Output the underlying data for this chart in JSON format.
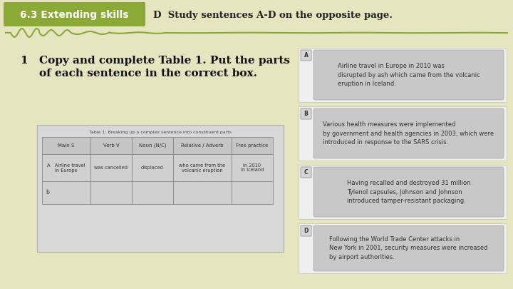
{
  "bg_color": "#e5e5c0",
  "header_box_color": "#8aaa35",
  "header_text": "6.3 Extending skills",
  "header_text_color": "#ffffff",
  "header_right_text": "D  Study sentences A-D on the opposite page.",
  "header_right_color": "#222222",
  "wave_color": "#8aaa35",
  "body_num": "1",
  "body_text_1": "Copy and complete Table 1. Put the parts",
  "body_text_2": "of each sentence in the correct box.",
  "body_text_color": "#111111",
  "sentence_A": "Airline travel in Europe in 2010 was\ndisrupted by ash which came from the volcanic\neruption in Iceland.",
  "sentence_B": "Various health measures were implemented\nby government and health agencies in 2003, which were\nintroduced in response to the SARS crisis.",
  "sentence_C": "Having recalled and destroyed 31 million\nTylenol capsules, Johnson and Johnson\nintroduced tamper-resistant packaging.",
  "sentence_D": "Following the World Trade Center attacks in\nNew York in 2001, security measures were increased\nby airport authorities.",
  "table_title": "Table 1: Breaking up a complex sentence into constituent parts",
  "col_headers": [
    "Main S",
    "Verb V",
    "Noun (N/C)",
    "Relative / Adverb",
    "Free practice"
  ],
  "row_a_data": [
    "Airline travel\nin Europe",
    "was cancelled",
    "displaced",
    "who came from the\nvolcanic eruption",
    "in 2010\nin Iceland"
  ],
  "row_b_label": "b"
}
